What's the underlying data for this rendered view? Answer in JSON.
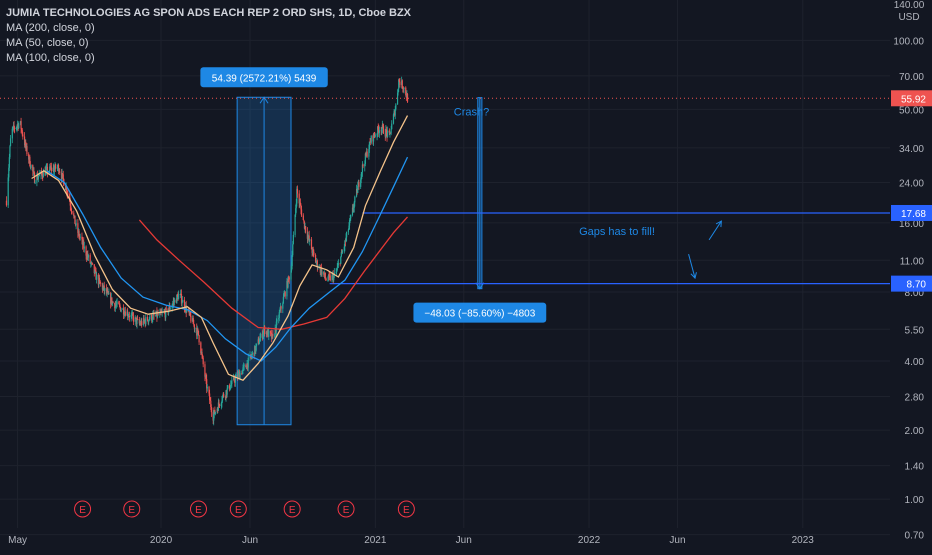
{
  "legend": {
    "title": "JUMIA TECHNOLOGIES AG SPON ADS EACH REP 2 ORD SHS, 1D, Cboe BZX",
    "ma200": "MA (200, close, 0)",
    "ma50": "MA (50, close, 0)",
    "ma100": "MA (100, close, 0)"
  },
  "currency": {
    "top": "140.00",
    "unit": "USD"
  },
  "colors": {
    "background": "#131722",
    "grid": "#1e222d",
    "up": "#26a69a",
    "down": "#ef5350",
    "ma200": "#e53935",
    "ma50": "#2196f3",
    "ma100": "#f5c38a",
    "accent": "#2962ff",
    "measure": "#1e88e5",
    "earnings": "#f23645"
  },
  "chart_data": {
    "type": "candlestick",
    "symbol": "JMIA",
    "scale": "log",
    "ylim": [
      0.6,
      150
    ],
    "y_ticks": [
      100,
      70,
      50,
      34,
      24,
      16,
      11,
      8,
      5.5,
      4,
      2.8,
      2,
      1.4,
      1,
      0.7
    ],
    "y_tick_labels": [
      "100.00",
      "70.00",
      "50.00",
      "34.00",
      "24.00",
      "16.00",
      "11.00",
      "8.00",
      "5.50",
      "4.00",
      "2.80",
      "2.00",
      "1.40",
      "1.00",
      "0.70"
    ],
    "x_ticks": [
      {
        "label": "May",
        "date": "2019-05-01"
      },
      {
        "label": "2020",
        "date": "2020-01-01"
      },
      {
        "label": "Jun",
        "date": "2020-06-01"
      },
      {
        "label": "2021",
        "date": "2021-01-01"
      },
      {
        "label": "Jun",
        "date": "2021-06-01"
      },
      {
        "label": "2022",
        "date": "2022-01-01"
      },
      {
        "label": "Jun",
        "date": "2022-06-01"
      },
      {
        "label": "2023",
        "date": "2023-01-01"
      }
    ],
    "xlim": [
      "2019-04-01",
      "2023-05-30"
    ],
    "price_path": [
      [
        "2019-04-12",
        20
      ],
      [
        "2019-04-20",
        40
      ],
      [
        "2019-05-05",
        44
      ],
      [
        "2019-05-15",
        34
      ],
      [
        "2019-05-30",
        25
      ],
      [
        "2019-06-20",
        27
      ],
      [
        "2019-07-10",
        28
      ],
      [
        "2019-07-25",
        22
      ],
      [
        "2019-08-10",
        15
      ],
      [
        "2019-08-25",
        12
      ],
      [
        "2019-09-15",
        9
      ],
      [
        "2019-10-10",
        7.2
      ],
      [
        "2019-11-01",
        6.6
      ],
      [
        "2019-11-25",
        5.8
      ],
      [
        "2019-12-15",
        6.2
      ],
      [
        "2020-01-10",
        6.5
      ],
      [
        "2020-02-01",
        7.8
      ],
      [
        "2020-02-20",
        6.2
      ],
      [
        "2020-03-05",
        5.2
      ],
      [
        "2020-03-18",
        3.2
      ],
      [
        "2020-03-30",
        2.3
      ],
      [
        "2020-04-15",
        2.8
      ],
      [
        "2020-05-05",
        3.3
      ],
      [
        "2020-05-25",
        3.8
      ],
      [
        "2020-06-10",
        4.5
      ],
      [
        "2020-06-25",
        5.5
      ],
      [
        "2020-07-10",
        5.0
      ],
      [
        "2020-07-25",
        7.0
      ],
      [
        "2020-08-10",
        10
      ],
      [
        "2020-08-20",
        22
      ],
      [
        "2020-09-01",
        16
      ],
      [
        "2020-09-20",
        11
      ],
      [
        "2020-10-10",
        9
      ],
      [
        "2020-10-25",
        9.5
      ],
      [
        "2020-11-10",
        13
      ],
      [
        "2020-11-25",
        19
      ],
      [
        "2020-12-10",
        28
      ],
      [
        "2020-12-25",
        37
      ],
      [
        "2021-01-10",
        42
      ],
      [
        "2021-01-25",
        38
      ],
      [
        "2021-02-05",
        52
      ],
      [
        "2021-02-10",
        67
      ],
      [
        "2021-02-18",
        63
      ],
      [
        "2021-02-25",
        55.92
      ]
    ],
    "last_price": "55.92",
    "moving_averages": [
      {
        "name": "MA (200, close, 0)",
        "color_key": "ma200",
        "points": [
          [
            "2019-11-25",
            16.5
          ],
          [
            "2019-12-25",
            13.5
          ],
          [
            "2020-02-01",
            11
          ],
          [
            "2020-03-15",
            8.8
          ],
          [
            "2020-05-01",
            6.8
          ],
          [
            "2020-06-15",
            5.6
          ],
          [
            "2020-07-25",
            5.5
          ],
          [
            "2020-09-01",
            5.8
          ],
          [
            "2020-10-10",
            6.2
          ],
          [
            "2020-11-10",
            7.5
          ],
          [
            "2020-12-15",
            10
          ],
          [
            "2021-02-01",
            14.5
          ],
          [
            "2021-02-25",
            17
          ]
        ]
      },
      {
        "name": "MA (50, close, 0)",
        "color_key": "ma50",
        "points": [
          [
            "2019-06-20",
            27
          ],
          [
            "2019-07-20",
            24
          ],
          [
            "2019-08-20",
            17.5
          ],
          [
            "2019-09-20",
            12.5
          ],
          [
            "2019-10-25",
            9.2
          ],
          [
            "2019-12-01",
            7.6
          ],
          [
            "2020-01-10",
            7.0
          ],
          [
            "2020-02-15",
            6.7
          ],
          [
            "2020-03-20",
            6.0
          ],
          [
            "2020-04-20",
            5.0
          ],
          [
            "2020-05-25",
            4.3
          ],
          [
            "2020-06-20",
            4.0
          ],
          [
            "2020-07-15",
            4.6
          ],
          [
            "2020-08-10",
            5.6
          ],
          [
            "2020-09-10",
            6.8
          ],
          [
            "2020-10-15",
            8.0
          ],
          [
            "2020-11-10",
            9.0
          ],
          [
            "2020-12-10",
            12
          ],
          [
            "2021-01-10",
            17.5
          ],
          [
            "2021-02-01",
            23
          ],
          [
            "2021-02-25",
            31
          ]
        ]
      },
      {
        "name": "MA (100, close, 0)",
        "color_key": "ma100",
        "points": [
          [
            "2019-05-25",
            25
          ],
          [
            "2019-06-15",
            27
          ],
          [
            "2019-07-10",
            24.5
          ],
          [
            "2019-08-10",
            18
          ],
          [
            "2019-09-10",
            11.5
          ],
          [
            "2019-10-10",
            8.2
          ],
          [
            "2019-11-10",
            6.8
          ],
          [
            "2019-12-10",
            6.4
          ],
          [
            "2020-01-15",
            6.6
          ],
          [
            "2020-02-15",
            6.9
          ],
          [
            "2020-03-10",
            6.2
          ],
          [
            "2020-03-30",
            4.8
          ],
          [
            "2020-04-25",
            3.5
          ],
          [
            "2020-05-20",
            3.3
          ],
          [
            "2020-06-15",
            3.9
          ],
          [
            "2020-07-10",
            4.8
          ],
          [
            "2020-08-05",
            6.3
          ],
          [
            "2020-08-25",
            8.5
          ],
          [
            "2020-09-15",
            10.5
          ],
          [
            "2020-10-10",
            10
          ],
          [
            "2020-10-30",
            9.3
          ],
          [
            "2020-11-25",
            12.5
          ],
          [
            "2020-12-15",
            19
          ],
          [
            "2021-01-10",
            27
          ],
          [
            "2021-02-01",
            36
          ],
          [
            "2021-02-25",
            47
          ]
        ]
      }
    ],
    "horizontal_lines": [
      {
        "value": "17.68",
        "from": "2020-12-10"
      },
      {
        "value": "8.70",
        "from": "2020-10-15"
      }
    ],
    "measurements": [
      {
        "label": "54.39 (2572.21%) 5439",
        "from_date": "2020-05-10",
        "to_date": "2020-08-10",
        "from_price": 2.11,
        "to_price": 56.5,
        "direction": "up"
      },
      {
        "label": "−48.03 (−85.60%) −4803",
        "from_date": "2021-06-25",
        "to_date": "2021-07-02",
        "from_price": 56.3,
        "to_price": 8.27,
        "direction": "down"
      }
    ],
    "annotations": [
      {
        "text": "Crash?",
        "date": "2021-05-15",
        "price": 47
      },
      {
        "text": "Gaps has to fill!",
        "date": "2021-12-15",
        "price": 14.2
      }
    ],
    "arrows": [
      {
        "from": [
          "2022-07-25",
          13.5
        ],
        "to": [
          "2022-08-15",
          16.3
        ]
      },
      {
        "from": [
          "2022-06-20",
          11.7
        ],
        "to": [
          "2022-07-01",
          9.2
        ]
      }
    ],
    "earnings": {
      "label": "E",
      "dates": [
        "2019-08-20",
        "2019-11-12",
        "2020-03-05",
        "2020-05-12",
        "2020-08-12",
        "2020-11-12",
        "2021-02-23"
      ]
    }
  }
}
